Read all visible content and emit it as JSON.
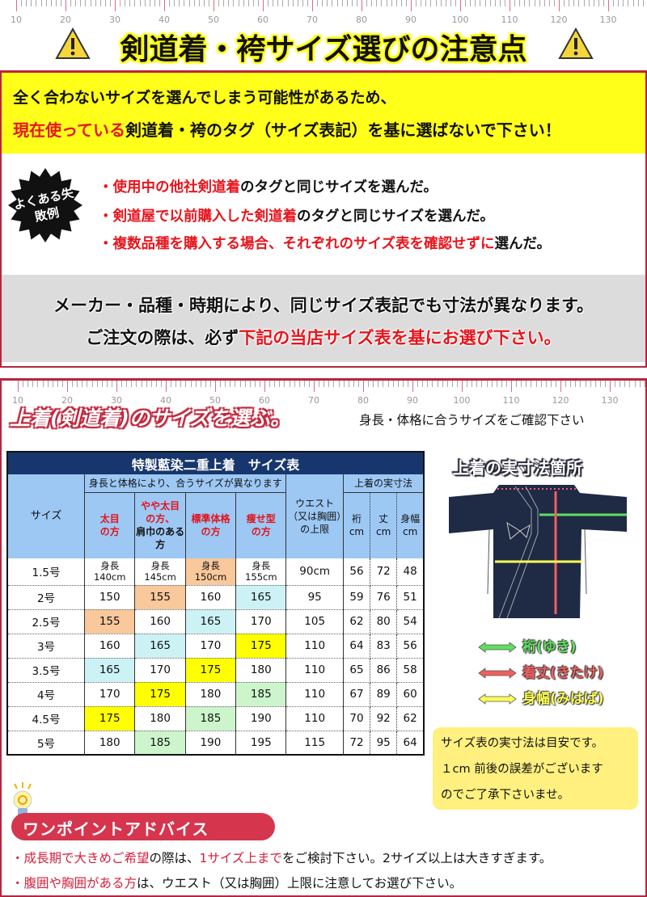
{
  "ruler_numbers": [
    "10",
    "20",
    "30",
    "40",
    "50",
    "60",
    "70",
    "80",
    "90",
    "100",
    "110",
    "120",
    "130"
  ],
  "section1": {
    "title": "剣道着・袴サイズ選びの注意点",
    "yellow_line1": "全く合わないサイズを選んでしまう可能性があるため、",
    "yellow_line2_red": "現在使っている",
    "yellow_line2_rest": "剣道着・袴のタグ（サイズ表記）を基に選ばないで下さい！",
    "badge": "よくある失敗例",
    "failures": [
      {
        "red": "・使用中の他社剣道着",
        "rest": "のタグと同じサイズを選んだ。"
      },
      {
        "red": "・剣道屋で以前購入した剣道着",
        "rest": "のタグと同じサイズを選んだ。"
      },
      {
        "red": "・複数品種を購入する場合、それぞれのサイズ表を確認せずに",
        "rest": "選んだ。"
      }
    ],
    "gray_line1": "メーカー・品種・時期により、同じサイズ表記でも寸法が異なります。",
    "gray_line2_a": "ご注文の際は、必ず",
    "gray_line2_red": "下記の当店サイズ表を基にお選び下さい。"
  },
  "section2": {
    "title": "上着(剣道着)のサイズを選ぶ。",
    "subtitle": "身長・体格に合うサイズをご確認下さい",
    "table": {
      "title": "特製藍染二重上着　サイズ表",
      "size_header": "サイズ",
      "group_header": "身長と体格により、合うサイズが異なります",
      "body_types": [
        [
          "太目",
          "の方",
          ""
        ],
        [
          "やや太目",
          "の方、",
          "肩巾のある方"
        ],
        [
          "標準体格",
          "の方",
          ""
        ],
        [
          "痩せ型",
          "の方",
          ""
        ]
      ],
      "waist_header": "ウエスト（又は胸囲）の上限",
      "measure_group": "上着の実寸法",
      "measure_headers": [
        "裄 cm",
        "丈 cm",
        "身幅 cm"
      ],
      "height_prefix": "身長",
      "rows": [
        {
          "size": "1.5号",
          "heights": [
            "140cm",
            "145cm",
            "150cm",
            "155cm"
          ],
          "waist": "90cm",
          "yuki": "56",
          "take": "72",
          "mihaba": "48",
          "hl": [
            "",
            "",
            "orange",
            ""
          ]
        },
        {
          "size": "2号",
          "heights": [
            "150",
            "155",
            "160",
            "165"
          ],
          "waist": "95",
          "yuki": "59",
          "take": "76",
          "mihaba": "51",
          "hl": [
            "",
            "orange",
            "",
            "blue"
          ]
        },
        {
          "size": "2.5号",
          "heights": [
            "155",
            "160",
            "165",
            "170"
          ],
          "waist": "105",
          "yuki": "62",
          "take": "80",
          "mihaba": "54",
          "hl": [
            "orange",
            "",
            "blue",
            ""
          ]
        },
        {
          "size": "3号",
          "heights": [
            "160",
            "165",
            "170",
            "175"
          ],
          "waist": "110",
          "yuki": "64",
          "take": "83",
          "mihaba": "56",
          "hl": [
            "",
            "blue",
            "",
            "yellow"
          ]
        },
        {
          "size": "3.5号",
          "heights": [
            "165",
            "170",
            "175",
            "180"
          ],
          "waist": "110",
          "yuki": "65",
          "take": "86",
          "mihaba": "58",
          "hl": [
            "blue",
            "",
            "yellow",
            ""
          ]
        },
        {
          "size": "4号",
          "heights": [
            "170",
            "175",
            "180",
            "185"
          ],
          "waist": "110",
          "yuki": "67",
          "take": "89",
          "mihaba": "60",
          "hl": [
            "",
            "yellow",
            "",
            "green"
          ]
        },
        {
          "size": "4.5号",
          "heights": [
            "175",
            "180",
            "185",
            "190"
          ],
          "waist": "110",
          "yuki": "70",
          "take": "92",
          "mihaba": "62",
          "hl": [
            "yellow",
            "",
            "green",
            ""
          ]
        },
        {
          "size": "5号",
          "heights": [
            "180",
            "185",
            "190",
            "195"
          ],
          "waist": "115",
          "yuki": "72",
          "take": "95",
          "mihaba": "64",
          "hl": [
            "",
            "green",
            "",
            ""
          ]
        }
      ]
    },
    "diagram_title": "上着の実寸法箇所",
    "legend": [
      {
        "label": "裄(ゆき)",
        "color": "#5fe05f"
      },
      {
        "label": "着丈(きたけ)",
        "color": "#f06060"
      },
      {
        "label": "身幅(みはば)",
        "color": "#ffff55"
      }
    ],
    "note": [
      "サイズ表の実寸法は目安です。",
      "１cm 前後の誤差がございます",
      "のでご了承下さいませ。"
    ],
    "advice_title": "ワンポイントアドバイス",
    "advice": [
      {
        "parts": [
          [
            "r",
            "・成長期で大きめご希望"
          ],
          [
            "",
            "の際は、"
          ],
          [
            "r",
            "1サイズ上まで"
          ],
          [
            "",
            "をご検討下さい。2サイズ以上は大きすぎます。"
          ]
        ]
      },
      {
        "parts": [
          [
            "r",
            "・腹囲や胸囲がある方"
          ],
          [
            "",
            "は、ウエスト（又は胸囲）上限に注意してお選び下さい。"
          ]
        ]
      }
    ]
  },
  "colors": {
    "orange": "#f9c89b",
    "blue": "#ccf2f6",
    "yellow": "#ffff00",
    "green": "#ccf5cc",
    "navy": "#17366d",
    "accent_red": "#b8243f"
  }
}
